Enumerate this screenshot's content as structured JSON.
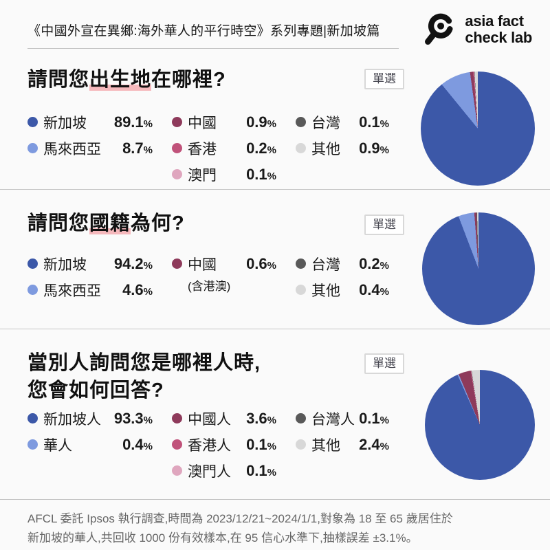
{
  "header": {
    "title": "《中國外宣在異鄉:海外華人的平行時空》系列專題|新加坡篇",
    "logo": {
      "icon": "magnifier-eye-icon",
      "line1": "asia fact",
      "line2": "check lab"
    }
  },
  "palette": {
    "navy": "#3C58A8",
    "blue": "#7E9ADF",
    "maroon": "#8E3A5B",
    "rose": "#C0527A",
    "pink": "#DFA6BE",
    "darkgray": "#595959",
    "lightgray": "#D8D8D8",
    "highlight": "#F5B8BC",
    "divider": "#C4C4C4"
  },
  "sections": [
    {
      "id": "birthplace",
      "badge": "單選",
      "title_parts": [
        {
          "text": "請問您"
        },
        {
          "text": "出生地",
          "highlight": true
        },
        {
          "text": "在哪裡?"
        }
      ],
      "columns": [
        [
          {
            "label": "新加坡",
            "value": "89.1",
            "color": "navy"
          },
          {
            "label": "馬來西亞",
            "value": "8.7",
            "color": "blue"
          }
        ],
        [
          {
            "label": "中國",
            "value": "0.9",
            "color": "maroon"
          },
          {
            "label": "香港",
            "value": "0.2",
            "color": "rose"
          },
          {
            "label": "澳門",
            "value": "0.1",
            "color": "pink"
          }
        ],
        [
          {
            "label": "台灣",
            "value": "0.1",
            "color": "darkgray"
          },
          {
            "label": "其他",
            "value": "0.9",
            "color": "lightgray"
          }
        ]
      ]
    },
    {
      "id": "nationality",
      "badge": "單選",
      "title_parts": [
        {
          "text": "請問您"
        },
        {
          "text": "國籍",
          "highlight": true
        },
        {
          "text": "為何?"
        }
      ],
      "columns": [
        [
          {
            "label": "新加坡",
            "value": "94.2",
            "color": "navy"
          },
          {
            "label": "馬來西亞",
            "value": "4.6",
            "color": "blue"
          }
        ],
        [
          {
            "label": "中國",
            "value": "0.6",
            "color": "maroon",
            "note": "(含港澳)"
          }
        ],
        [
          {
            "label": "台灣",
            "value": "0.2",
            "color": "darkgray"
          },
          {
            "label": "其他",
            "value": "0.4",
            "color": "lightgray"
          }
        ]
      ]
    },
    {
      "id": "identity",
      "badge": "單選",
      "title_parts": [
        {
          "text": "當別人詢問您是哪裡人時,",
          "break_after": true
        },
        {
          "text": "您會如何回答?"
        }
      ],
      "columns": [
        [
          {
            "label": "新加坡人",
            "value": "93.3",
            "color": "navy"
          },
          {
            "label": "華人",
            "value": "0.4",
            "color": "blue"
          }
        ],
        [
          {
            "label": "中國人",
            "value": "3.6",
            "color": "maroon"
          },
          {
            "label": "香港人",
            "value": "0.1",
            "color": "rose"
          },
          {
            "label": "澳門人",
            "value": "0.1",
            "color": "pink"
          }
        ],
        [
          {
            "label": "台灣人",
            "value": "0.1",
            "color": "darkgray"
          },
          {
            "label": "其他",
            "value": "2.4",
            "color": "lightgray"
          }
        ]
      ]
    }
  ],
  "chart_data": [
    {
      "type": "pie",
      "title": "請問您出生地在哪裡?",
      "unit": "%",
      "start_angle_deg": 0,
      "direction": "clockwise",
      "labels": [
        "新加坡",
        "馬來西亞",
        "中國",
        "香港",
        "澳門",
        "台灣",
        "其他"
      ],
      "values": [
        89.1,
        8.7,
        0.9,
        0.2,
        0.1,
        0.1,
        0.9
      ],
      "colors": [
        "#3C58A8",
        "#7E9ADF",
        "#8E3A5B",
        "#C0527A",
        "#DFA6BE",
        "#595959",
        "#D8D8D8"
      ]
    },
    {
      "type": "pie",
      "title": "請問您國籍為何?",
      "unit": "%",
      "start_angle_deg": 0,
      "direction": "clockwise",
      "labels": [
        "新加坡",
        "馬來西亞",
        "中國(含港澳)",
        "台灣",
        "其他"
      ],
      "values": [
        94.2,
        4.6,
        0.6,
        0.2,
        0.4
      ],
      "colors": [
        "#3C58A8",
        "#7E9ADF",
        "#8E3A5B",
        "#595959",
        "#D8D8D8"
      ]
    },
    {
      "type": "pie",
      "title": "當別人詢問您是哪裡人時,您會如何回答?",
      "unit": "%",
      "start_angle_deg": 0,
      "direction": "clockwise",
      "labels": [
        "新加坡人",
        "華人",
        "中國人",
        "香港人",
        "澳門人",
        "台灣人",
        "其他"
      ],
      "values": [
        93.3,
        0.4,
        3.6,
        0.1,
        0.1,
        0.1,
        2.4
      ],
      "colors": [
        "#3C58A8",
        "#7E9ADF",
        "#8E3A5B",
        "#C0527A",
        "#DFA6BE",
        "#595959",
        "#D8D8D8"
      ]
    }
  ],
  "footer": {
    "line1": "AFCL 委託 Ipsos 執行調查,時間為 2023/12/21~2024/1/1,對象為 18 至 65 歲居住於",
    "line2": "新加坡的華人,共回收 1000 份有效樣本,在 95 信心水準下,抽樣誤差 ±3.1%。"
  }
}
